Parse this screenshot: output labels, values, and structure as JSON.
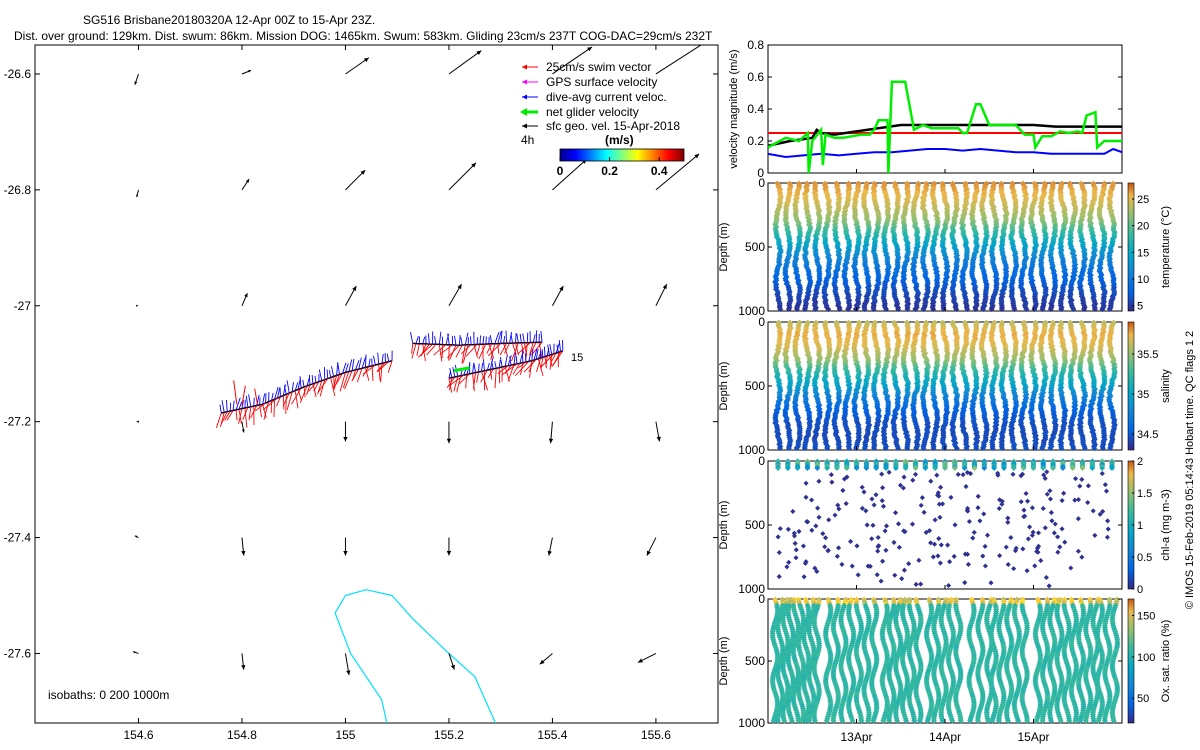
{
  "header": {
    "title": "SG516 Brisbane20180320A 12-Apr 00Z to 15-Apr 23Z.",
    "subtitle": "Dist. over ground: 129km. Dist. swum: 86km. Mission DOG: 1465km. Swum: 583km. Gliding 23cm/s 237T COG-DAC=29cm/s 232T"
  },
  "credit": "© IMOS 15-Feb-2019 05:14:43 Hobart time. QC flags 1 2",
  "colors": {
    "swim": "#ff0000",
    "gps": "#ff00ff",
    "dac": "#0000ff",
    "net": "#00ee00",
    "sfc": "#000000",
    "isobath": "#00e0ff",
    "ref_line": "#ff0000",
    "sfc_speed": "#000000",
    "dac_speed": "#0000ff",
    "net_speed": "#00ee00"
  },
  "chart_data": [
    {
      "type": "map",
      "name": "glider track and velocity map",
      "xlim": [
        154.4,
        155.72
      ],
      "ylim": [
        -27.72,
        -26.55
      ],
      "x_ticks": [
        154.6,
        154.8,
        155,
        155.2,
        155.4,
        155.6
      ],
      "x_tick_labels": [
        "154.6",
        "154.8",
        "155",
        "155.2",
        "155.4",
        "155.6"
      ],
      "y_ticks": [
        -26.6,
        -26.8,
        -27,
        -27.2,
        -27.4,
        -27.6
      ],
      "y_tick_labels": [
        "-26.6",
        "-26.8",
        "-27",
        "-27.2",
        "-27.4",
        "-27.6"
      ],
      "legend": {
        "entries": [
          "25cm/s swim vector",
          "GPS surface velocity",
          "dive-avg current veloc.",
          "net glider velocity",
          "sfc geo. vel. 15-Apr-2018"
        ],
        "extra": "4h",
        "colorbar_title": "(m/s)",
        "colorbar_range": [
          0,
          0.5
        ],
        "colorbar_ticks": [
          0,
          0.2,
          0.4
        ],
        "colorbar_tick_labels": [
          "0",
          "0.2",
          "0.4"
        ]
      },
      "isobaths_note": "isobaths: 0   200  1000m",
      "track_label": "15",
      "geo_vel_grid": {
        "lons": [
          154.6,
          154.8,
          155.0,
          155.2,
          155.4,
          155.6
        ],
        "lats": [
          -26.6,
          -26.8,
          -27.0,
          -27.2,
          -27.4,
          -27.6
        ],
        "u": [
          [
            -0.02,
            0.05,
            0.13,
            0.18,
            0.22,
            0.28
          ],
          [
            -0.01,
            0.04,
            0.11,
            0.15,
            0.19,
            0.24
          ],
          [
            0.0,
            0.03,
            0.06,
            0.07,
            0.06,
            0.06
          ],
          [
            -0.01,
            0.01,
            0.0,
            0.0,
            -0.01,
            0.02
          ],
          [
            -0.02,
            0.01,
            0.0,
            0.0,
            -0.02,
            -0.05
          ],
          [
            -0.03,
            0.01,
            0.02,
            0.03,
            -0.07,
            -0.1
          ]
        ],
        "v": [
          [
            -0.06,
            0.02,
            0.09,
            0.13,
            0.15,
            0.18
          ],
          [
            -0.04,
            0.06,
            0.11,
            0.15,
            0.17,
            0.2
          ],
          [
            0.0,
            0.07,
            0.11,
            0.12,
            0.11,
            0.12
          ],
          [
            0.0,
            -0.06,
            -0.11,
            -0.12,
            -0.12,
            -0.11
          ],
          [
            0.01,
            -0.1,
            -0.1,
            -0.1,
            -0.1,
            -0.1
          ],
          [
            0.01,
            -0.09,
            -0.12,
            -0.09,
            -0.06,
            -0.05
          ]
        ]
      },
      "track": {
        "segments": [
          [
            [
              154.76,
              -27.185
            ],
            [
              154.84,
              -27.17
            ],
            [
              154.92,
              -27.14
            ],
            [
              155.0,
              -27.115
            ],
            [
              155.09,
              -27.095
            ]
          ],
          [
            [
              155.13,
              -27.065
            ],
            [
              155.22,
              -27.068
            ],
            [
              155.3,
              -27.065
            ],
            [
              155.38,
              -27.063
            ]
          ],
          [
            [
              155.2,
              -27.125
            ],
            [
              155.28,
              -27.11
            ],
            [
              155.36,
              -27.095
            ],
            [
              155.42,
              -27.078
            ]
          ]
        ]
      },
      "isobath_path": [
        [
          155.29,
          -27.72
        ],
        [
          155.25,
          -27.64
        ],
        [
          155.2,
          -27.6
        ],
        [
          155.13,
          -27.54
        ],
        [
          155.09,
          -27.5
        ],
        [
          155.04,
          -27.49
        ],
        [
          155.0,
          -27.5
        ],
        [
          154.98,
          -27.53
        ],
        [
          155.01,
          -27.6
        ],
        [
          155.07,
          -27.68
        ],
        [
          155.08,
          -27.72
        ]
      ]
    },
    {
      "type": "line",
      "name": "velocity magnitude",
      "ylabel": "velocity magnitude (m/s)",
      "ylim": [
        0,
        0.8
      ],
      "y_ticks": [
        0,
        0.2,
        0.4,
        0.6,
        0.8
      ],
      "y_tick_labels": [
        "0",
        "0.2",
        "0.4",
        "0.6",
        "0.8"
      ],
      "xlim": [
        12.0,
        16.0
      ],
      "x_ticks": [
        13,
        14,
        15
      ],
      "x_tick_labels": [
        "13Apr",
        "14Apr",
        "15Apr"
      ],
      "series": [
        {
          "name": "reference 25cm/s",
          "x": [
            12.0,
            16.0
          ],
          "y": [
            0.25,
            0.25
          ]
        },
        {
          "name": "sfc geo. vel.",
          "x": [
            12.0,
            12.25,
            12.5,
            12.55,
            12.6,
            12.75,
            13.0,
            13.25,
            13.5,
            13.75,
            14.0,
            14.25,
            14.5,
            14.75,
            15.0,
            15.25,
            15.5,
            15.75,
            16.0
          ],
          "y": [
            0.17,
            0.2,
            0.22,
            0.27,
            0.25,
            0.24,
            0.26,
            0.28,
            0.3,
            0.3,
            0.3,
            0.3,
            0.3,
            0.3,
            0.3,
            0.29,
            0.29,
            0.29,
            0.29
          ]
        },
        {
          "name": "dive-avg current",
          "x": [
            12.0,
            12.2,
            12.4,
            12.6,
            12.8,
            13.0,
            13.2,
            13.4,
            13.6,
            13.8,
            14.0,
            14.2,
            14.4,
            14.6,
            14.8,
            15.0,
            15.2,
            15.4,
            15.6,
            15.8,
            15.9,
            16.0
          ],
          "y": [
            0.12,
            0.1,
            0.11,
            0.12,
            0.11,
            0.12,
            0.13,
            0.13,
            0.14,
            0.15,
            0.15,
            0.14,
            0.15,
            0.14,
            0.13,
            0.13,
            0.12,
            0.12,
            0.12,
            0.12,
            0.15,
            0.13
          ]
        },
        {
          "name": "net glider velocity",
          "x": [
            12.0,
            12.1,
            12.2,
            12.35,
            12.45,
            12.46,
            12.5,
            12.6,
            12.62,
            12.65,
            12.75,
            12.85,
            12.95,
            13.05,
            13.15,
            13.2,
            13.25,
            13.35,
            13.36,
            13.4,
            13.45,
            13.55,
            13.65,
            13.75,
            13.85,
            13.95,
            14.0,
            14.05,
            14.15,
            14.2,
            14.25,
            14.35,
            14.4,
            14.5,
            14.6,
            14.7,
            14.8,
            14.9,
            15.0,
            15.02,
            15.1,
            15.2,
            15.3,
            15.4,
            15.5,
            15.55,
            15.6,
            15.7,
            15.72,
            15.8,
            15.9,
            15.95,
            16.0
          ],
          "y": [
            0.16,
            0.19,
            0.22,
            0.2,
            0.25,
            0.0,
            0.2,
            0.27,
            0.05,
            0.24,
            0.22,
            0.22,
            0.23,
            0.24,
            0.24,
            0.27,
            0.33,
            0.33,
            0.0,
            0.57,
            0.57,
            0.57,
            0.27,
            0.3,
            0.28,
            0.28,
            0.28,
            0.28,
            0.28,
            0.25,
            0.25,
            0.43,
            0.43,
            0.3,
            0.3,
            0.3,
            0.3,
            0.24,
            0.24,
            0.16,
            0.23,
            0.23,
            0.26,
            0.25,
            0.26,
            0.25,
            0.36,
            0.38,
            0.16,
            0.2,
            0.2,
            0.2,
            0.2
          ]
        }
      ]
    },
    {
      "type": "heatmap",
      "name": "temperature section",
      "ylabel": "Depth (m)",
      "ylim": [
        1000,
        0
      ],
      "y_ticks": [
        0,
        500,
        1000
      ],
      "y_tick_labels": [
        "0",
        "500",
        "1000"
      ],
      "colorbar_label": "temperature (°C)",
      "colorbar_range": [
        4,
        28
      ],
      "colorbar_ticks": [
        5,
        10,
        15,
        20,
        25
      ],
      "colorbar_tick_labels": [
        "5",
        "10",
        "15",
        "20",
        "25"
      ],
      "dives": 35,
      "profile": {
        "depth": [
          0,
          100,
          200,
          300,
          400,
          500,
          600,
          700,
          800,
          900,
          1000
        ],
        "value": [
          26,
          24.5,
          23,
          21,
          17,
          13.5,
          10.5,
          8.5,
          6.8,
          5.5,
          4.6
        ]
      }
    },
    {
      "type": "heatmap",
      "name": "salinity section",
      "ylabel": "Depth (m)",
      "ylim": [
        1000,
        0
      ],
      "y_ticks": [
        0,
        500,
        1000
      ],
      "y_tick_labels": [
        "0",
        "500",
        "1000"
      ],
      "colorbar_label": "salinity",
      "colorbar_range": [
        34.3,
        35.9
      ],
      "colorbar_ticks": [
        34.5,
        35,
        35.5
      ],
      "colorbar_tick_labels": [
        "34.5",
        "35",
        "35.5"
      ],
      "dives": 35,
      "profile": {
        "depth": [
          0,
          100,
          200,
          300,
          400,
          500,
          600,
          700,
          800,
          900,
          1000
        ],
        "value": [
          35.55,
          35.7,
          35.62,
          35.45,
          35.15,
          34.95,
          34.7,
          34.52,
          34.45,
          34.43,
          34.45
        ]
      }
    },
    {
      "type": "scatter",
      "name": "chlorophyll section",
      "ylabel": "Depth (m)",
      "ylim": [
        1000,
        0
      ],
      "y_ticks": [
        0,
        500,
        1000
      ],
      "y_tick_labels": [
        "0",
        "500",
        "1000"
      ],
      "colorbar_label": "chl-a (mg m-3)",
      "colorbar_range": [
        0,
        2
      ],
      "colorbar_ticks": [
        0,
        0.5,
        1,
        1.5,
        2
      ],
      "colorbar_tick_labels": [
        "0",
        "0.5",
        "1",
        "1.5",
        "2"
      ],
      "dives": 35,
      "surface_value": 0.7,
      "deep_value": 0.03
    },
    {
      "type": "scatter",
      "name": "oxygen saturation section",
      "ylabel": "Depth (m)",
      "ylim": [
        1000,
        0
      ],
      "y_ticks": [
        0,
        500,
        1000
      ],
      "y_tick_labels": [
        "0",
        "500",
        "1000"
      ],
      "colorbar_label": "Ox. sat. ratio (%)",
      "colorbar_range": [
        20,
        170
      ],
      "colorbar_ticks": [
        50,
        100,
        150
      ],
      "colorbar_tick_labels": [
        "50",
        "100",
        "150"
      ],
      "x_ticks": [
        13,
        14,
        15
      ],
      "x_tick_labels": [
        "13Apr",
        "14Apr",
        "15Apr"
      ],
      "xlim": [
        12.0,
        16.0
      ],
      "groups": [
        [
          12.08,
          12.55,
          9
        ],
        [
          12.68,
          13.2,
          7
        ],
        [
          13.32,
          13.7,
          6
        ],
        [
          13.82,
          14.15,
          5
        ],
        [
          14.3,
          14.5,
          3
        ],
        [
          14.55,
          14.9,
          5
        ],
        [
          15.05,
          15.7,
          9
        ],
        [
          15.75,
          15.92,
          3
        ]
      ],
      "surface_value": 130,
      "deep_value": 92
    }
  ]
}
